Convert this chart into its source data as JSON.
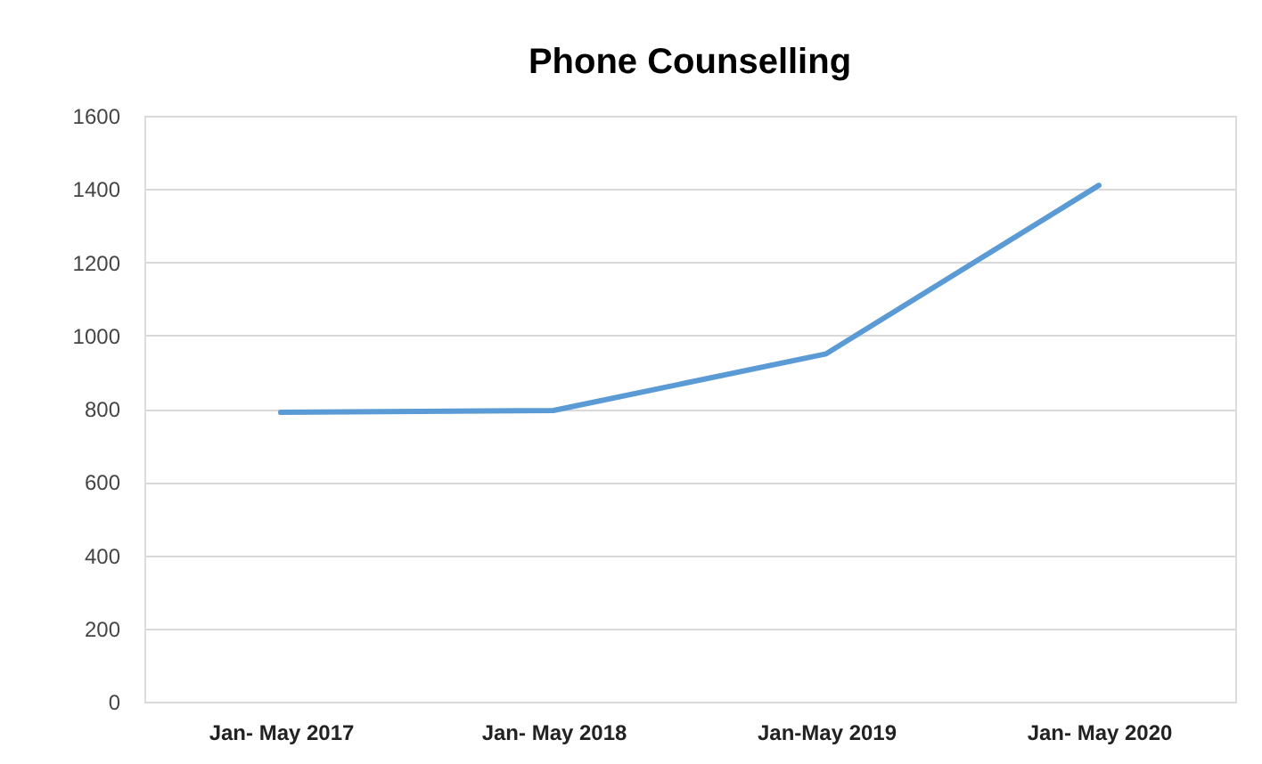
{
  "chart_data": {
    "type": "line",
    "title": "Phone Counselling",
    "categories": [
      "Jan- May 2017",
      "Jan- May 2018",
      "Jan-May 2019",
      "Jan- May 2020"
    ],
    "series": [
      {
        "color": "#5b9bd5",
        "values": [
          790,
          795,
          950,
          1410
        ]
      }
    ],
    "ylim": [
      0,
      1600
    ],
    "yticks": [
      0,
      200,
      400,
      600,
      800,
      1000,
      1200,
      1400,
      1600
    ],
    "grid": "y",
    "marker": "none",
    "line_style": "solid"
  }
}
